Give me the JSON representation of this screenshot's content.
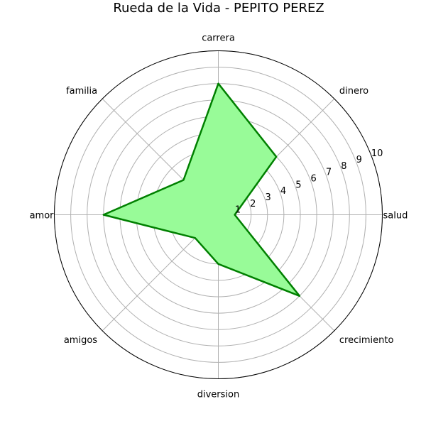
{
  "chart_data": {
    "type": "radar",
    "title": "Rueda de la Vida - PEPITO PEREZ",
    "categories": [
      "salud",
      "dinero",
      "carrera",
      "familia",
      "amor",
      "amigos",
      "diversion",
      "crecimiento"
    ],
    "series": [
      {
        "values": [
          1,
          5,
          8,
          3,
          7,
          2,
          3,
          7
        ]
      }
    ],
    "rlim": [
      0,
      10
    ],
    "rticks": [
      1,
      2,
      3,
      4,
      5,
      6,
      7,
      8,
      9,
      10
    ],
    "grid": true,
    "colors": {
      "line": "#008000",
      "fill": "#98fb98",
      "grid": "#b0b0b0",
      "outer": "#000000"
    }
  }
}
